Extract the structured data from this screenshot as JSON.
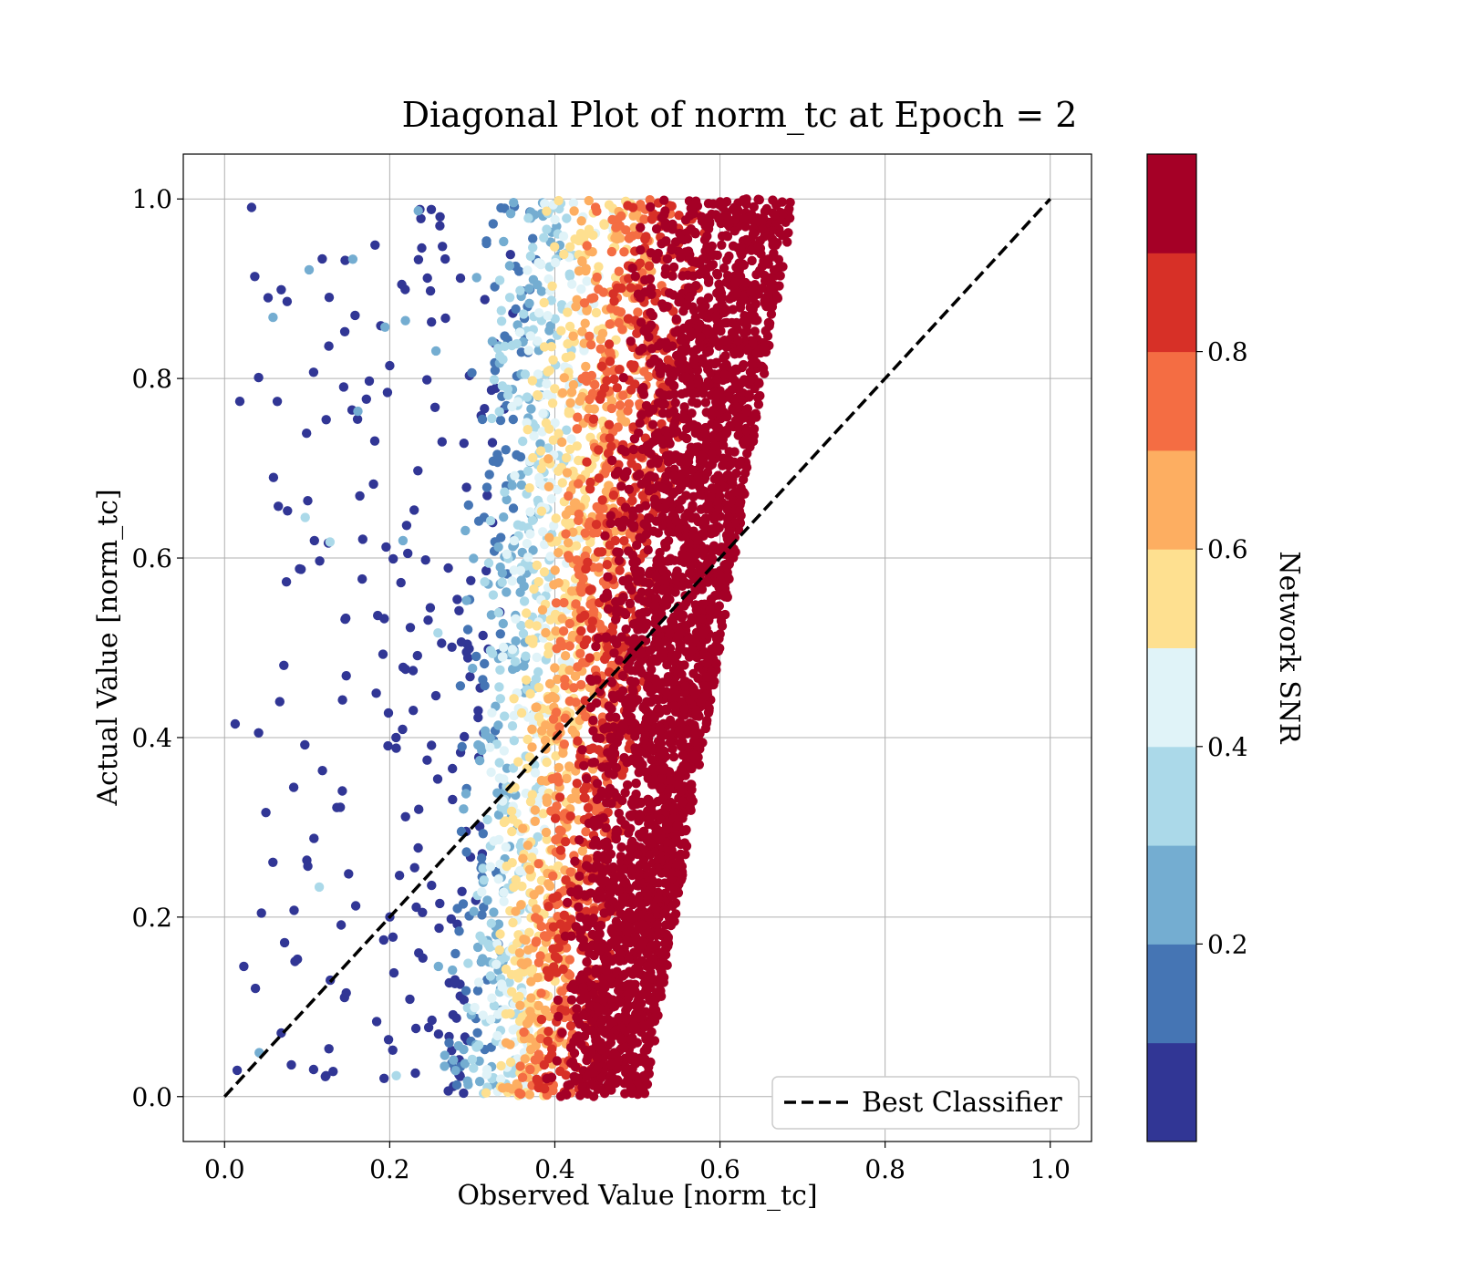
{
  "chart_data": {
    "type": "scatter",
    "title": "Diagonal Plot of norm_tc at Epoch = 2",
    "xlabel": "Observed Value [norm_tc]",
    "ylabel": "Actual Value [norm_tc]",
    "xlim": [
      -0.05,
      1.05
    ],
    "ylim": [
      -0.05,
      1.05
    ],
    "grid": true,
    "x_ticks": [
      "0.0",
      "0.2",
      "0.4",
      "0.6",
      "0.8",
      "1.0"
    ],
    "y_ticks": [
      "0.0",
      "0.2",
      "0.4",
      "0.6",
      "0.8",
      "1.0"
    ],
    "reference_line": {
      "label": "Best Classifier",
      "style": "dashed",
      "color": "#000000",
      "x": [
        0.0,
        1.0
      ],
      "y": [
        0.0,
        1.0
      ]
    },
    "legend_position": "lower-right",
    "colorbar": {
      "label": "Network SNR",
      "ticks": [
        "0.2",
        "0.4",
        "0.6",
        "0.8"
      ],
      "tick_values": [
        0.2,
        0.4,
        0.6,
        0.8
      ],
      "range": [
        0.0,
        1.0
      ],
      "bins": [
        {
          "from": 0.0,
          "to": 0.1,
          "color": "#313695"
        },
        {
          "from": 0.1,
          "to": 0.2,
          "color": "#4575b4"
        },
        {
          "from": 0.2,
          "to": 0.3,
          "color": "#74add1"
        },
        {
          "from": 0.3,
          "to": 0.4,
          "color": "#abd9e9"
        },
        {
          "from": 0.4,
          "to": 0.5,
          "color": "#e0f3f8"
        },
        {
          "from": 0.5,
          "to": 0.6,
          "color": "#fee090"
        },
        {
          "from": 0.6,
          "to": 0.7,
          "color": "#fdae61"
        },
        {
          "from": 0.7,
          "to": 0.8,
          "color": "#f46d43"
        },
        {
          "from": 0.8,
          "to": 0.9,
          "color": "#d73027"
        },
        {
          "from": 0.9,
          "to": 1.0,
          "color": "#a50026"
        }
      ]
    },
    "scatter_distribution": {
      "dense_band": {
        "y_range": [
          0.0,
          1.0
        ],
        "x_min_at_y0": 0.26,
        "x_min_at_y1": 0.3,
        "x_max_at_y0": 0.51,
        "x_max_at_y1": 0.69,
        "snr_increases_with_x": true
      },
      "sparse_low_snr_outliers_x_range": [
        0.0,
        0.3
      ]
    }
  }
}
